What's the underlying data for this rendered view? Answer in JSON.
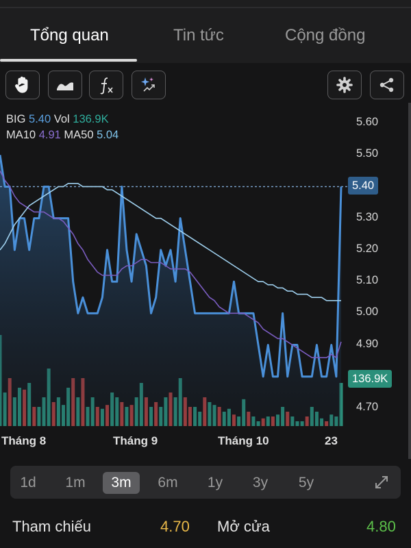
{
  "tabs": [
    "Tổng quan",
    "Tin tức",
    "Cộng đồng"
  ],
  "active_tab": 0,
  "toolbar": {
    "left_icons": [
      "hand-icon",
      "area-chart-icon",
      "fx-icon",
      "sparkle-icon"
    ],
    "right_icons": [
      "gear-icon",
      "share-icon"
    ]
  },
  "legend": {
    "symbol": "BIG",
    "price": "5.40",
    "vol_label": "Vol",
    "vol": "136.9K",
    "ma10_label": "MA10",
    "ma10": "4.91",
    "ma50_label": "MA50",
    "ma50": "5.04"
  },
  "colors": {
    "price_line": "#4a90d9",
    "ma10": "#7a5cc0",
    "ma50": "#9fd0ee",
    "vol_up": "#2b8f7a",
    "vol_down": "#b0403e",
    "price_tag": "#2f5d8a",
    "vol_tag": "#2b8f7a"
  },
  "chart_data": {
    "type": "line",
    "title": "",
    "y_ticks": [
      "5.60",
      "5.50",
      "5.40",
      "5.30",
      "5.20",
      "5.10",
      "5.00",
      "4.90",
      "4.70"
    ],
    "ylim": [
      4.67,
      5.62
    ],
    "x_tick_labels": [
      "Tháng 8",
      "Tháng 9",
      "Tháng 10",
      "23"
    ],
    "last_price_tag": "5.40",
    "last_volume_tag": "136.9K",
    "series": [
      {
        "name": "BIG",
        "values": [
          5.5,
          5.4,
          5.4,
          5.2,
          5.3,
          5.3,
          5.2,
          5.3,
          5.3,
          5.4,
          5.4,
          5.3,
          5.3,
          5.3,
          5.3,
          5.1,
          5.0,
          5.05,
          5.0,
          5.0,
          5.0,
          5.05,
          5.2,
          5.1,
          5.1,
          5.4,
          5.2,
          5.1,
          5.25,
          5.2,
          5.15,
          5.0,
          5.05,
          5.2,
          5.15,
          5.2,
          5.1,
          5.3,
          5.2,
          5.1,
          5.0,
          5.0,
          5.0,
          5.0,
          5.0,
          5.0,
          5.0,
          5.0,
          5.1,
          5.0,
          5.0,
          5.0,
          5.0,
          4.9,
          4.8,
          4.9,
          4.8,
          4.8,
          5.0,
          4.8,
          4.9,
          4.9,
          4.8,
          4.8,
          4.8,
          4.9,
          4.8,
          4.8,
          4.9,
          4.8,
          5.4
        ]
      },
      {
        "name": "MA10",
        "values": [
          5.45,
          5.42,
          5.4,
          5.37,
          5.35,
          5.34,
          5.33,
          5.32,
          5.32,
          5.32,
          5.31,
          5.3,
          5.3,
          5.29,
          5.27,
          5.25,
          5.22,
          5.2,
          5.17,
          5.15,
          5.13,
          5.12,
          5.12,
          5.12,
          5.12,
          5.14,
          5.15,
          5.15,
          5.16,
          5.17,
          5.17,
          5.16,
          5.16,
          5.16,
          5.15,
          5.14,
          5.14,
          5.14,
          5.14,
          5.13,
          5.11,
          5.09,
          5.07,
          5.05,
          5.04,
          5.02,
          5.01,
          5.0,
          5.0,
          5.0,
          5.0,
          4.99,
          4.98,
          4.97,
          4.95,
          4.94,
          4.93,
          4.92,
          4.92,
          4.91,
          4.9,
          4.89,
          4.88,
          4.87,
          4.86,
          4.86,
          4.86,
          4.86,
          4.87,
          4.86,
          4.91
        ]
      },
      {
        "name": "MA50",
        "values": [
          5.2,
          5.22,
          5.25,
          5.28,
          5.3,
          5.32,
          5.34,
          5.35,
          5.36,
          5.37,
          5.38,
          5.39,
          5.4,
          5.4,
          5.41,
          5.41,
          5.41,
          5.4,
          5.4,
          5.4,
          5.4,
          5.4,
          5.39,
          5.39,
          5.38,
          5.37,
          5.36,
          5.35,
          5.34,
          5.33,
          5.32,
          5.31,
          5.3,
          5.3,
          5.29,
          5.28,
          5.27,
          5.26,
          5.25,
          5.24,
          5.23,
          5.22,
          5.21,
          5.2,
          5.19,
          5.18,
          5.17,
          5.16,
          5.15,
          5.14,
          5.13,
          5.12,
          5.11,
          5.1,
          5.1,
          5.09,
          5.09,
          5.08,
          5.08,
          5.07,
          5.07,
          5.06,
          5.06,
          5.06,
          5.05,
          5.05,
          5.05,
          5.04,
          5.04,
          5.04,
          5.04
        ]
      }
    ],
    "volume_relative": [
      0.95,
      0.35,
      0.5,
      0.3,
      0.4,
      0.38,
      0.45,
      0.2,
      0.2,
      0.3,
      0.6,
      0.25,
      0.3,
      0.22,
      0.4,
      0.5,
      0.3,
      0.5,
      0.2,
      0.3,
      0.2,
      0.18,
      0.22,
      0.35,
      0.3,
      0.25,
      0.2,
      0.22,
      0.3,
      0.45,
      0.3,
      0.2,
      0.25,
      0.2,
      0.3,
      0.35,
      0.3,
      0.5,
      0.3,
      0.2,
      0.2,
      0.15,
      0.3,
      0.25,
      0.22,
      0.2,
      0.15,
      0.18,
      0.12,
      0.1,
      0.28,
      0.15,
      0.1,
      0.05,
      0.08,
      0.1,
      0.1,
      0.12,
      0.2,
      0.15,
      0.1,
      0.05,
      0.05,
      0.1,
      0.2,
      0.15,
      0.08,
      0.05,
      0.12,
      0.1,
      0.45
    ],
    "volume_up": [
      1,
      1,
      0,
      1,
      1,
      0,
      1,
      0,
      1,
      1,
      1,
      0,
      1,
      1,
      1,
      0,
      1,
      0,
      1,
      1,
      0,
      1,
      0,
      1,
      1,
      0,
      1,
      0,
      1,
      1,
      0,
      1,
      0,
      1,
      1,
      0,
      1,
      1,
      0,
      0,
      1,
      1,
      0,
      1,
      1,
      0,
      1,
      1,
      0,
      1,
      1,
      0,
      1,
      1,
      0,
      1,
      0,
      1,
      1,
      0,
      1,
      1,
      1,
      0,
      1,
      1,
      1,
      0,
      1,
      1,
      1
    ]
  },
  "ranges": [
    "1d",
    "1m",
    "3m",
    "6m",
    "1y",
    "3y",
    "5y"
  ],
  "active_range": "3m",
  "expand_icon": "expand-icon",
  "stats": [
    {
      "label": "Tham chiếu",
      "value": "4.70",
      "color": "#e9b949"
    },
    {
      "label": "Mở cửa",
      "value": "4.80",
      "color": "#5cc04a"
    }
  ]
}
